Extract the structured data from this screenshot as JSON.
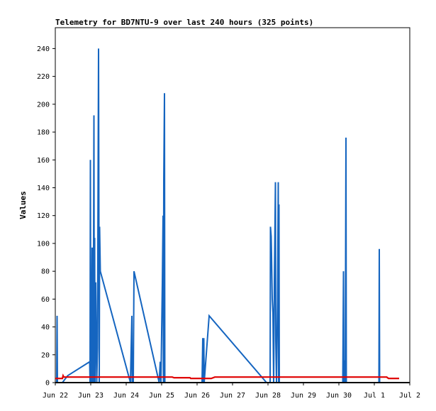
{
  "chart_data": {
    "type": "line",
    "title": "Telemetry for BD7NTU-9 over last 240 hours (325 points)",
    "xlabel": "",
    "ylabel": "Values",
    "x_ticks": [
      "Jun 22",
      "Jun 23",
      "Jun 24",
      "Jun 25",
      "Jun 26",
      "Jun 27",
      "Jun 28",
      "Jun 29",
      "Jun 30",
      "Jul 1",
      "Jul 2"
    ],
    "y_ticks": [
      0,
      20,
      40,
      60,
      80,
      100,
      120,
      140,
      160,
      180,
      200,
      220,
      240
    ],
    "xlim": [
      0,
      10
    ],
    "ylim": [
      0,
      255
    ],
    "grid": false,
    "legend": "none",
    "x_unit": "days since Jun 22",
    "series": [
      {
        "color": "#1565c0",
        "points": [
          [
            0.0,
            0
          ],
          [
            0.04,
            0
          ],
          [
            0.05,
            48
          ],
          [
            0.06,
            0
          ],
          [
            0.2,
            0
          ],
          [
            0.35,
            5
          ],
          [
            0.97,
            15
          ],
          [
            0.98,
            0
          ],
          [
            0.99,
            160
          ],
          [
            1.0,
            30
          ],
          [
            1.02,
            0
          ],
          [
            1.04,
            97
          ],
          [
            1.06,
            0
          ],
          [
            1.08,
            95
          ],
          [
            1.09,
            192
          ],
          [
            1.1,
            0
          ],
          [
            1.11,
            104
          ],
          [
            1.12,
            0
          ],
          [
            1.14,
            72
          ],
          [
            1.15,
            50
          ],
          [
            1.17,
            0
          ],
          [
            1.19,
            25
          ],
          [
            1.22,
            240
          ],
          [
            1.24,
            0
          ],
          [
            1.25,
            112
          ],
          [
            1.27,
            80
          ],
          [
            2.12,
            0
          ],
          [
            2.14,
            25
          ],
          [
            2.16,
            48
          ],
          [
            2.17,
            0
          ],
          [
            2.2,
            0
          ],
          [
            2.22,
            80
          ],
          [
            2.93,
            0
          ],
          [
            2.96,
            15
          ],
          [
            2.98,
            0
          ],
          [
            3.02,
            72
          ],
          [
            3.04,
            120
          ],
          [
            3.05,
            0
          ],
          [
            3.06,
            145
          ],
          [
            3.08,
            208
          ],
          [
            3.09,
            0
          ],
          [
            3.14,
            0
          ],
          [
            4.14,
            0
          ],
          [
            4.16,
            32
          ],
          [
            4.17,
            0
          ],
          [
            4.19,
            32
          ],
          [
            4.2,
            0
          ],
          [
            4.34,
            48
          ],
          [
            5.96,
            0
          ],
          [
            6.06,
            0
          ],
          [
            6.07,
            112
          ],
          [
            6.09,
            105
          ],
          [
            6.1,
            92
          ],
          [
            6.12,
            60
          ],
          [
            6.14,
            50
          ],
          [
            6.16,
            0
          ],
          [
            6.18,
            72
          ],
          [
            6.21,
            144
          ],
          [
            6.22,
            30
          ],
          [
            6.24,
            0
          ],
          [
            6.27,
            58
          ],
          [
            6.29,
            144
          ],
          [
            6.3,
            0
          ],
          [
            6.31,
            128
          ],
          [
            6.32,
            0
          ],
          [
            8.11,
            0
          ],
          [
            8.13,
            80
          ],
          [
            8.14,
            0
          ],
          [
            8.16,
            16
          ],
          [
            8.18,
            0
          ],
          [
            8.2,
            176
          ],
          [
            8.21,
            0
          ],
          [
            9.13,
            0
          ],
          [
            9.14,
            96
          ],
          [
            9.15,
            0
          ],
          [
            9.3,
            0
          ]
        ]
      },
      {
        "color": "#e00000",
        "points": [
          [
            0.0,
            3
          ],
          [
            0.2,
            3
          ],
          [
            0.22,
            5
          ],
          [
            0.24,
            4
          ],
          [
            3.3,
            4
          ],
          [
            3.35,
            3.5
          ],
          [
            3.8,
            3.5
          ],
          [
            3.82,
            3
          ],
          [
            4.4,
            3
          ],
          [
            4.5,
            4
          ],
          [
            9.35,
            4
          ],
          [
            9.4,
            3
          ],
          [
            9.7,
            3
          ]
        ]
      }
    ]
  }
}
